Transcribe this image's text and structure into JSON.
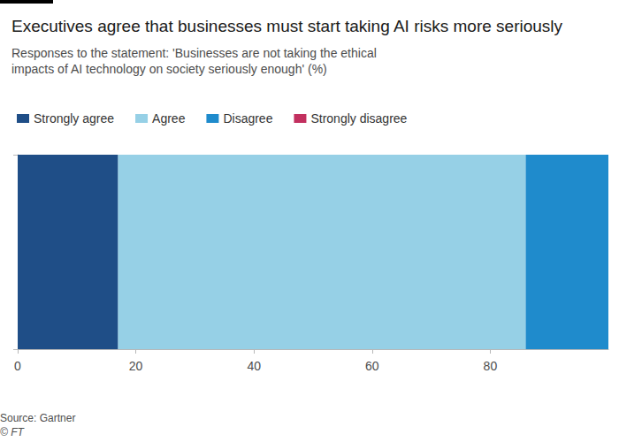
{
  "chart_data": {
    "type": "bar",
    "orientation": "horizontal",
    "stacked": true,
    "title": "Executives agree that businesses must start taking AI risks more seriously",
    "subtitle": "Responses to the statement: 'Businesses are not taking the ethical impacts of AI technology on society seriously enough' (%)",
    "source": "Source: Gartner",
    "credit": "© FT",
    "categories": [
      null
    ],
    "series": [
      {
        "name": "Strongly agree",
        "color": "#1f4e87",
        "values": [
          17
        ]
      },
      {
        "name": "Agree",
        "color": "#96d0e6",
        "values": [
          69
        ]
      },
      {
        "name": "Disagree",
        "color": "#1f8bcc",
        "values": [
          14
        ]
      },
      {
        "name": "Strongly disagree",
        "color": "#c2305f",
        "values": [
          0
        ]
      }
    ],
    "xlim": [
      0,
      100
    ],
    "xticks": [
      0,
      20,
      40,
      60,
      80
    ],
    "grid": false,
    "legend": "top-left"
  }
}
